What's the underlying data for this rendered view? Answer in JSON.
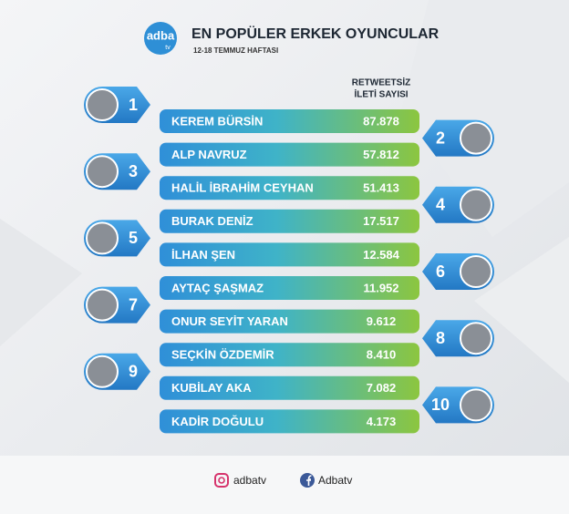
{
  "header": {
    "logo": "adba",
    "logo_sub": "tv",
    "title": "EN POPÜLER ERKEK OYUNCULAR",
    "subtitle": "12-18 TEMMUZ HAFTASI",
    "column_label": [
      "RETWEETSİZ",
      "İLETİ SAYISI"
    ]
  },
  "rows": [
    {
      "rank": 1,
      "name": "KEREM BÜRSİN",
      "value": "87.878"
    },
    {
      "rank": 2,
      "name": "ALP NAVRUZ",
      "value": "57.812"
    },
    {
      "rank": 3,
      "name": "HALİL İBRAHİM CEYHAN",
      "value": "51.413"
    },
    {
      "rank": 4,
      "name": "BURAK DENİZ",
      "value": "17.517"
    },
    {
      "rank": 5,
      "name": "İLHAN ŞEN",
      "value": "12.584"
    },
    {
      "rank": 6,
      "name": "AYTAÇ ŞAŞMAZ",
      "value": "11.952"
    },
    {
      "rank": 7,
      "name": "ONUR SEYİT YARAN",
      "value": "9.612"
    },
    {
      "rank": 8,
      "name": "SEÇKİN ÖZDEMİR",
      "value": "8.410"
    },
    {
      "rank": 9,
      "name": "KUBİLAY AKA",
      "value": "7.082"
    },
    {
      "rank": 10,
      "name": "KADİR DOĞULU",
      "value": "4.173"
    }
  ],
  "footer": {
    "instagram": "adbatv",
    "facebook": "Adbatv"
  }
}
